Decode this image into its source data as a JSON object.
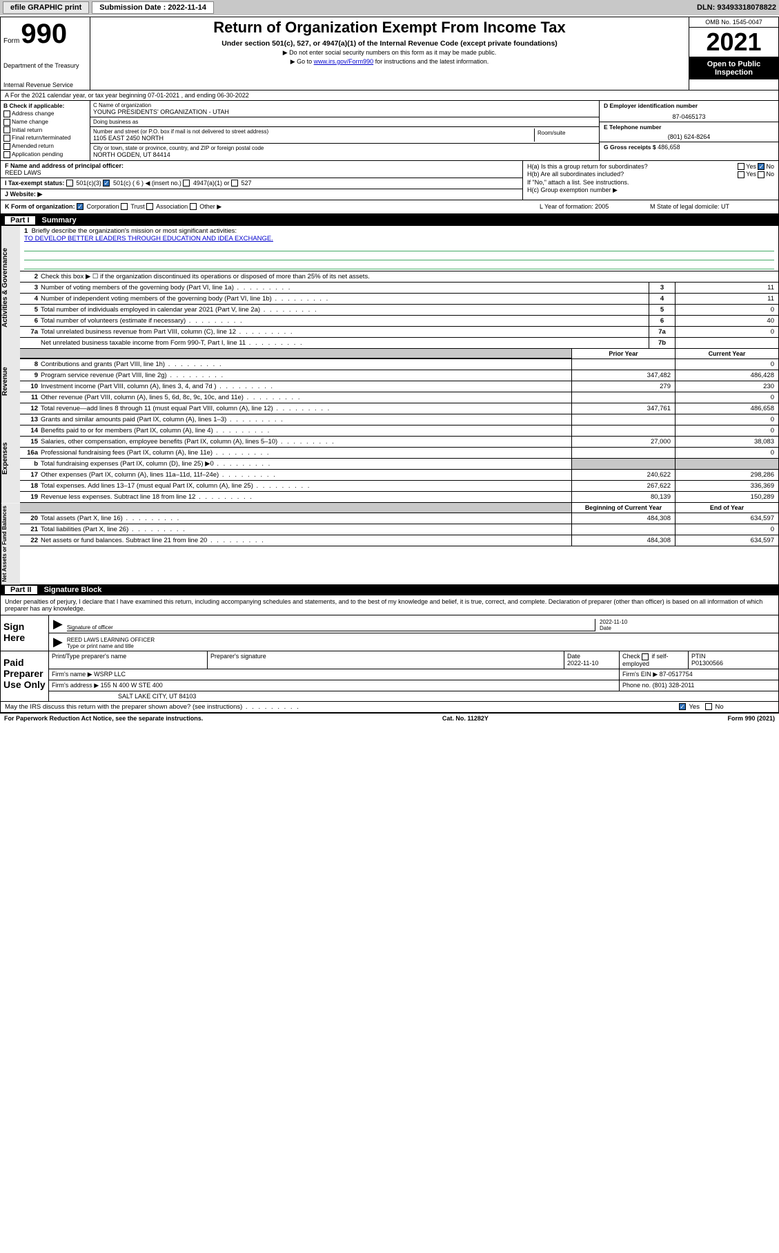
{
  "topbar": {
    "efile": "efile GRAPHIC print",
    "sub_label": "Submission Date : 2022-11-14",
    "dln": "DLN: 93493318078822"
  },
  "header": {
    "form_word": "Form",
    "form_num": "990",
    "dept": "Department of the Treasury",
    "irs": "Internal Revenue Service",
    "title": "Return of Organization Exempt From Income Tax",
    "sub1": "Under section 501(c), 527, or 4947(a)(1) of the Internal Revenue Code (except private foundations)",
    "sub2": "▶ Do not enter social security numbers on this form as it may be made public.",
    "sub3a": "▶ Go to ",
    "sub3_link": "www.irs.gov/Form990",
    "sub3b": " for instructions and the latest information.",
    "omb": "OMB No. 1545-0047",
    "year": "2021",
    "inspection": "Open to Public Inspection"
  },
  "row_a": "A For the 2021 calendar year, or tax year beginning 07-01-2021  , and ending 06-30-2022",
  "col_b": {
    "label": "B Check if applicable:",
    "opts": [
      "Address change",
      "Name change",
      "Initial return",
      "Final return/terminated",
      "Amended return",
      "Application pending"
    ]
  },
  "section_c": {
    "name_label": "C Name of organization",
    "name": "YOUNG PRESIDENTS' ORGANIZATION - UTAH",
    "dba_label": "Doing business as",
    "dba": "",
    "addr_label": "Number and street (or P.O. box if mail is not delivered to street address)",
    "room_label": "Room/suite",
    "addr": "1105 EAST 2450 NORTH",
    "city_label": "City or town, state or province, country, and ZIP or foreign postal code",
    "city": "NORTH OGDEN, UT  84414"
  },
  "col_right": {
    "d_label": "D Employer identification number",
    "ein": "87-0465173",
    "e_label": "E Telephone number",
    "phone": "(801) 624-8264",
    "g_label": "G Gross receipts $",
    "gross": "486,658"
  },
  "section_f": {
    "label": "F Name and address of principal officer:",
    "name": "REED LAWS"
  },
  "section_h": {
    "ha": "H(a)  Is this a group return for subordinates?",
    "hb": "H(b)  Are all subordinates included?",
    "hb_note": "If \"No,\" attach a list. See instructions.",
    "hc": "H(c)  Group exemption number ▶",
    "yes": "Yes",
    "no": "No"
  },
  "section_i": {
    "label": "I  Tax-exempt status:",
    "o1": "501(c)(3)",
    "o2": "501(c) ( 6 ) ◀ (insert no.)",
    "o3": "4947(a)(1) or",
    "o4": "527"
  },
  "section_j": "J  Website: ▶",
  "section_k": {
    "label": "K Form of organization:",
    "o1": "Corporation",
    "o2": "Trust",
    "o3": "Association",
    "o4": "Other ▶"
  },
  "section_l": "L Year of formation: 2005",
  "section_m": "M State of legal domicile: UT",
  "part1": {
    "label": "Part I",
    "title": "Summary"
  },
  "mission": {
    "num": "1",
    "label": "Briefly describe the organization's mission or most significant activities:",
    "text": "TO DEVELOP BETTER LEADERS THROUGH EDUCATION AND IDEA EXCHANGE."
  },
  "line2": "Check this box ▶ ☐  if the organization discontinued its operations or disposed of more than 25% of its net assets.",
  "gov_lines": [
    {
      "n": "3",
      "d": "Number of voting members of the governing body (Part VI, line 1a)",
      "k": "3",
      "v": "11"
    },
    {
      "n": "4",
      "d": "Number of independent voting members of the governing body (Part VI, line 1b)",
      "k": "4",
      "v": "11"
    },
    {
      "n": "5",
      "d": "Total number of individuals employed in calendar year 2021 (Part V, line 2a)",
      "k": "5",
      "v": "0"
    },
    {
      "n": "6",
      "d": "Total number of volunteers (estimate if necessary)",
      "k": "6",
      "v": "40"
    },
    {
      "n": "7a",
      "d": "Total unrelated business revenue from Part VIII, column (C), line 12",
      "k": "7a",
      "v": "0"
    },
    {
      "n": "",
      "d": "Net unrelated business taxable income from Form 990-T, Part I, line 11",
      "k": "7b",
      "v": ""
    }
  ],
  "col_hdr": {
    "prior": "Prior Year",
    "current": "Current Year"
  },
  "rev_lines": [
    {
      "n": "8",
      "d": "Contributions and grants (Part VIII, line 1h)",
      "p": "",
      "c": "0"
    },
    {
      "n": "9",
      "d": "Program service revenue (Part VIII, line 2g)",
      "p": "347,482",
      "c": "486,428"
    },
    {
      "n": "10",
      "d": "Investment income (Part VIII, column (A), lines 3, 4, and 7d )",
      "p": "279",
      "c": "230"
    },
    {
      "n": "11",
      "d": "Other revenue (Part VIII, column (A), lines 5, 6d, 8c, 9c, 10c, and 11e)",
      "p": "",
      "c": "0"
    },
    {
      "n": "12",
      "d": "Total revenue—add lines 8 through 11 (must equal Part VIII, column (A), line 12)",
      "p": "347,761",
      "c": "486,658"
    }
  ],
  "exp_lines": [
    {
      "n": "13",
      "d": "Grants and similar amounts paid (Part IX, column (A), lines 1–3)",
      "p": "",
      "c": "0"
    },
    {
      "n": "14",
      "d": "Benefits paid to or for members (Part IX, column (A), line 4)",
      "p": "",
      "c": "0"
    },
    {
      "n": "15",
      "d": "Salaries, other compensation, employee benefits (Part IX, column (A), lines 5–10)",
      "p": "27,000",
      "c": "38,083"
    },
    {
      "n": "16a",
      "d": "Professional fundraising fees (Part IX, column (A), line 11e)",
      "p": "",
      "c": "0"
    },
    {
      "n": "b",
      "d": "Total fundraising expenses (Part IX, column (D), line 25) ▶0",
      "p": "gray",
      "c": "gray"
    },
    {
      "n": "17",
      "d": "Other expenses (Part IX, column (A), lines 11a–11d, 11f–24e)",
      "p": "240,622",
      "c": "298,286"
    },
    {
      "n": "18",
      "d": "Total expenses. Add lines 13–17 (must equal Part IX, column (A), line 25)",
      "p": "267,622",
      "c": "336,369"
    },
    {
      "n": "19",
      "d": "Revenue less expenses. Subtract line 18 from line 12",
      "p": "80,139",
      "c": "150,289"
    }
  ],
  "na_hdr": {
    "begin": "Beginning of Current Year",
    "end": "End of Year"
  },
  "na_lines": [
    {
      "n": "20",
      "d": "Total assets (Part X, line 16)",
      "p": "484,308",
      "c": "634,597"
    },
    {
      "n": "21",
      "d": "Total liabilities (Part X, line 26)",
      "p": "",
      "c": "0"
    },
    {
      "n": "22",
      "d": "Net assets or fund balances. Subtract line 21 from line 20",
      "p": "484,308",
      "c": "634,597"
    }
  ],
  "side_labels": {
    "gov": "Activities & Governance",
    "rev": "Revenue",
    "exp": "Expenses",
    "na": "Net Assets or Fund Balances"
  },
  "part2": {
    "label": "Part II",
    "title": "Signature Block"
  },
  "penalty": "Under penalties of perjury, I declare that I have examined this return, including accompanying schedules and statements, and to the best of my knowledge and belief, it is true, correct, and complete. Declaration of preparer (other than officer) is based on all information of which preparer has any knowledge.",
  "sign": {
    "label": "Sign Here",
    "date": "2022-11-10",
    "sig_label": "Signature of officer",
    "date_label": "Date",
    "name": "REED LAWS  LEARNING OFFICER",
    "name_label": "Type or print name and title"
  },
  "prep": {
    "label": "Paid Preparer Use Only",
    "h1": "Print/Type preparer's name",
    "h2": "Preparer's signature",
    "h3": "Date",
    "h3v": "2022-11-10",
    "h4a": "Check",
    "h4b": "if self-employed",
    "h5": "PTIN",
    "h5v": "P01300566",
    "firm_name_lbl": "Firm's name   ▶",
    "firm_name": "WSRP LLC",
    "firm_ein_lbl": "Firm's EIN ▶",
    "firm_ein": "87-0517754",
    "firm_addr_lbl": "Firm's address ▶",
    "firm_addr1": "155 N 400 W STE 400",
    "firm_addr2": "SALT LAKE CITY, UT  84103",
    "phone_lbl": "Phone no.",
    "phone": "(801) 328-2011"
  },
  "may_irs": "May the IRS discuss this return with the preparer shown above? (see instructions)",
  "footer": {
    "left": "For Paperwork Reduction Act Notice, see the separate instructions.",
    "mid": "Cat. No. 11282Y",
    "right": "Form 990 (2021)"
  }
}
